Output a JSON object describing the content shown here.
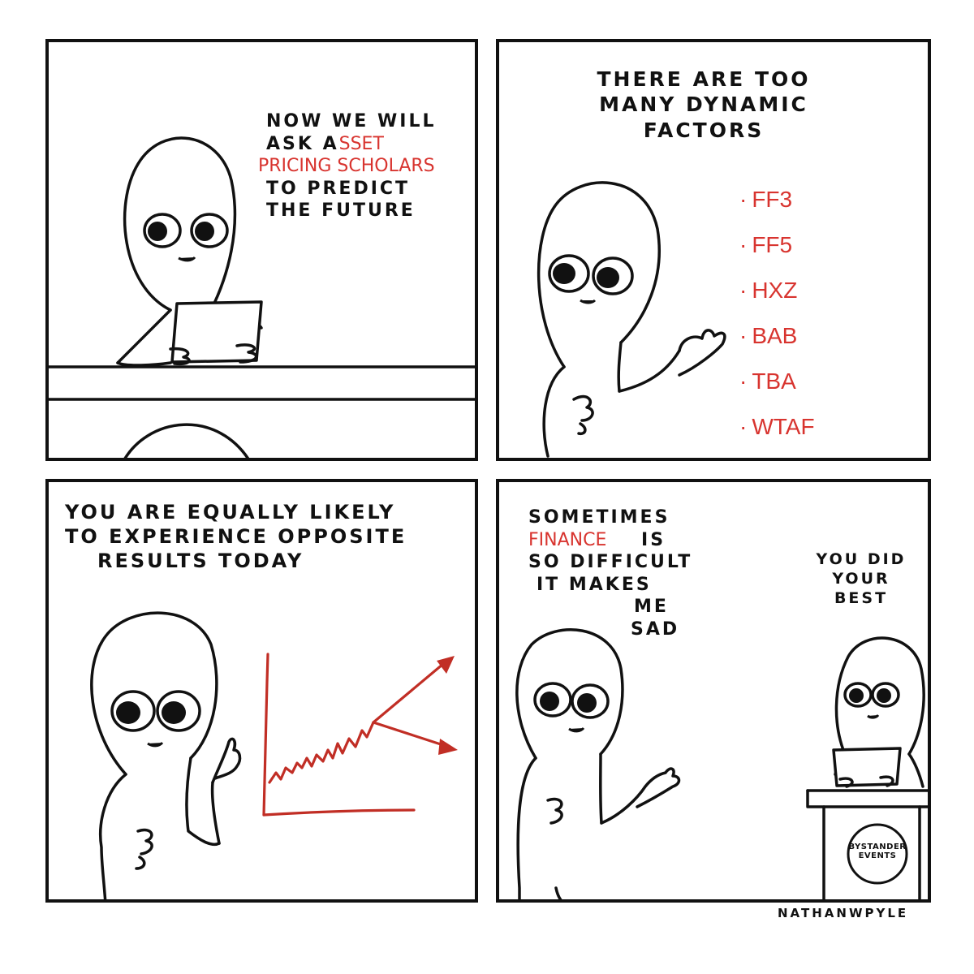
{
  "panels": {
    "p1": {
      "lines": [
        "NOW WE WILL",
        "ASK A"
      ],
      "asset_red": "SSET",
      "red_line": "PRICING SCHOLARS",
      "more_lines": [
        "TO PREDICT",
        "THE FUTURE"
      ]
    },
    "p2": {
      "lines": [
        "THERE ARE TOO",
        "MANY DYNAMIC",
        "FACTORS"
      ],
      "factors": [
        "FF3",
        "FF5",
        "HXZ",
        "BAB",
        "TBA",
        "WTAF"
      ]
    },
    "p3": {
      "lines": [
        "YOU ARE EQUALLY LIKELY",
        "TO EXPERIENCE OPPOSITE",
        "RESULTS TODAY"
      ]
    },
    "p4": {
      "left_lines": [
        "SOMETIMES"
      ],
      "finance_red": "FINANCE",
      "finance_tail": "IS",
      "left_more": [
        "SO DIFFICULT",
        "IT MAKES",
        "ME",
        "SAD"
      ],
      "right_lines": [
        "YOU DID",
        "YOUR",
        "BEST"
      ],
      "logo": [
        "BYSTANDER",
        "EVENTS"
      ]
    }
  },
  "credit": "NATHANWPYLE",
  "colors": {
    "ink": "#111111",
    "red": "#d8342f"
  }
}
